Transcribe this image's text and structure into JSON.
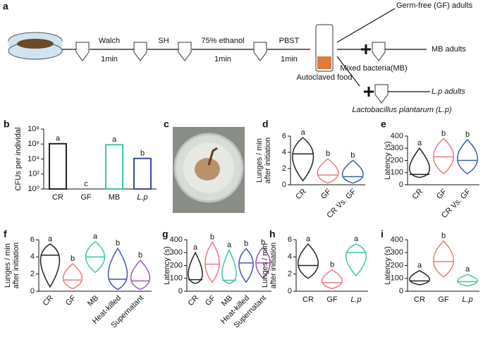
{
  "diagram": {
    "panel": "a",
    "steps": [
      "Walch",
      "SH",
      "75% ethanol",
      "PBST"
    ],
    "durations": [
      "1min",
      "1min",
      "1min"
    ],
    "food": "Autoclaved food",
    "outcomes": [
      "Germ-free (GF) adults",
      "MB adults",
      "L.p adults"
    ],
    "bacteria": [
      "Mixed bacteria(MB)",
      "Lactobacillus plantarum (L.p)"
    ]
  },
  "photo": {
    "panel": "c"
  },
  "chart_data": [
    {
      "panel": "b",
      "type": "bar",
      "ylabel": "CFUs per individal",
      "log": true,
      "categories": [
        "CR",
        "GF",
        "MB",
        "L.p"
      ],
      "colors": [
        "#222222",
        "#f07878",
        "#3cc8a0",
        "#3a48a8"
      ],
      "values": [
        1100000,
        1,
        800000,
        12000
      ],
      "annotations": [
        "a",
        "c",
        "a",
        "b"
      ],
      "ylim": [
        1,
        100000000
      ],
      "yticks": [
        {
          "value": 1,
          "label": "10⁰"
        },
        {
          "value": 100,
          "label": "10²"
        },
        {
          "value": 10000,
          "label": "10⁴"
        },
        {
          "value": 1000000,
          "label": "10⁶"
        },
        {
          "value": 100000000,
          "label": "10⁸"
        }
      ]
    },
    {
      "panel": "d",
      "type": "violin",
      "ylabel": [
        "Lunges / min",
        "after initiation"
      ],
      "categories": [
        "CR",
        "GF",
        "CR Vs. GF"
      ],
      "colors": [
        "#222222",
        "#f07878",
        "#3a5fb0"
      ],
      "values": [
        3.8,
        1.2,
        1.0
      ],
      "min": [
        0.5,
        0.2,
        0.2
      ],
      "max": [
        5.8,
        3.2,
        3.0
      ],
      "annotations": [
        "a",
        "b",
        "b"
      ],
      "ylim": [
        0,
        6
      ],
      "yticks": [
        0,
        2,
        4,
        6
      ],
      "rotate": true
    },
    {
      "panel": "e",
      "type": "violin",
      "ylabel": [
        "Latency (s)"
      ],
      "categories": [
        "CR",
        "GF",
        "CR Vs. GF"
      ],
      "colors": [
        "#222222",
        "#f07878",
        "#3a5fb0"
      ],
      "values": [
        85,
        230,
        200
      ],
      "min": [
        60,
        90,
        90
      ],
      "max": [
        300,
        380,
        370
      ],
      "annotations": [
        "a",
        "b",
        "b"
      ],
      "ylim": [
        0,
        400
      ],
      "yticks": [
        0,
        100,
        200,
        300,
        400
      ],
      "rotate": true
    },
    {
      "panel": "f",
      "type": "violin",
      "ylabel": [
        "Lunges / min",
        "after initiation"
      ],
      "categories": [
        "CR",
        "GF",
        "MB",
        "Heat-killed",
        "Supernatant"
      ],
      "colors": [
        "#222222",
        "#f07878",
        "#3cc8a0",
        "#4455b0",
        "#9b59b6"
      ],
      "values": [
        4.2,
        1.3,
        4.0,
        1.4,
        1.2
      ],
      "min": [
        0.5,
        0.3,
        2.2,
        0.2,
        0.2
      ],
      "max": [
        5.5,
        3.2,
        5.8,
        5.0,
        3.6
      ],
      "annotations": [
        "a",
        "b",
        "a",
        "b",
        "b"
      ],
      "ylim": [
        0,
        6
      ],
      "yticks": [
        0,
        2,
        4,
        6
      ],
      "rotate": true
    },
    {
      "panel": "g",
      "type": "violin",
      "ylabel": [
        "Latency (s)"
      ],
      "categories": [
        "CR",
        "GF",
        "MB",
        "Heat-killed",
        "Supernatant"
      ],
      "colors": [
        "#222222",
        "#f07878",
        "#3cc8a0",
        "#4455b0",
        "#9b59b6"
      ],
      "values": [
        90,
        210,
        85,
        220,
        220
      ],
      "min": [
        60,
        70,
        60,
        70,
        100
      ],
      "max": [
        300,
        380,
        320,
        330,
        340
      ],
      "annotations": [
        "a",
        "b",
        "a",
        "b",
        "b"
      ],
      "ylim": [
        0,
        400
      ],
      "yticks": [
        0,
        100,
        200,
        300,
        400
      ],
      "rotate": true
    },
    {
      "panel": "h",
      "type": "violin",
      "ylabel": [
        "Lunges / min",
        "after initiation"
      ],
      "categories": [
        "CR",
        "GF",
        "L.p"
      ],
      "colors": [
        "#222222",
        "#f07878",
        "#3cc8a0"
      ],
      "values": [
        3.0,
        1.0,
        4.5
      ],
      "min": [
        1.5,
        0.3,
        1.8
      ],
      "max": [
        5.5,
        2.5,
        5.5
      ],
      "annotations": [
        "a",
        "b",
        "a"
      ],
      "ylim": [
        0,
        6
      ],
      "yticks": [
        0,
        2,
        4,
        6
      ],
      "rotate": false
    },
    {
      "panel": "i",
      "type": "violin",
      "ylabel": [
        "Latency (s)"
      ],
      "categories": [
        "CR",
        "GF",
        "L.p"
      ],
      "colors": [
        "#222222",
        "#f07878",
        "#3cc8a0"
      ],
      "values": [
        80,
        230,
        75
      ],
      "min": [
        50,
        110,
        40
      ],
      "max": [
        160,
        390,
        130
      ],
      "annotations": [
        "a",
        "b",
        "a"
      ],
      "ylim": [
        0,
        400
      ],
      "yticks": [
        0,
        100,
        200,
        300,
        400
      ],
      "rotate": false
    }
  ]
}
